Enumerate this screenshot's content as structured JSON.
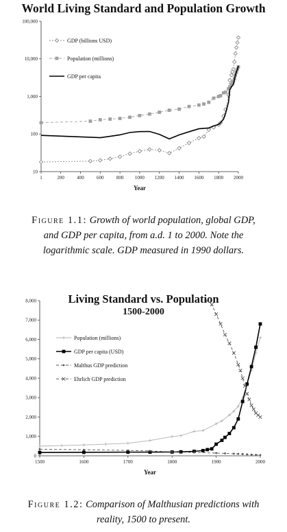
{
  "chart_data": [
    {
      "type": "line",
      "title": "World Living Standard and Population Growth",
      "xlabel": "Year",
      "ylabel": "",
      "yscale": "log",
      "xlim": [
        1,
        2000
      ],
      "ylim": [
        10,
        100000
      ],
      "x_ticks": [
        "1",
        "200",
        "400",
        "600",
        "800",
        "1000",
        "1200",
        "1400",
        "1600",
        "1800",
        "2000"
      ],
      "y_ticks": [
        "10",
        "100",
        "1,000",
        "10,000",
        "100,000"
      ],
      "legend": "top-left",
      "series": [
        {
          "name": "GDP (billions USD)",
          "color": "#8a8a8a",
          "marker": "diamond",
          "style": "dotted",
          "x": [
            1,
            500,
            600,
            700,
            800,
            900,
            1000,
            1100,
            1200,
            1300,
            1400,
            1500,
            1600,
            1650,
            1700,
            1750,
            1800,
            1820,
            1850,
            1870,
            1900,
            1913,
            1930,
            1940,
            1950,
            1960,
            1970,
            1980,
            1990,
            2000
          ],
          "y": [
            18,
            19,
            20,
            22,
            25,
            30,
            35,
            39,
            37,
            31,
            42,
            58,
            78,
            85,
            130,
            150,
            175,
            200,
            300,
            450,
            1100,
            2700,
            3700,
            4500,
            5300,
            8300,
            13800,
            20000,
            27000,
            37000
          ]
        },
        {
          "name": "Population (millions)",
          "color": "#a0a0a0",
          "marker": "square",
          "style": "dashed",
          "x": [
            1,
            500,
            600,
            700,
            800,
            900,
            1000,
            1100,
            1200,
            1300,
            1400,
            1500,
            1600,
            1650,
            1700,
            1750,
            1800,
            1820,
            1850,
            1870,
            1900,
            1913,
            1930,
            1940,
            1950,
            1960,
            1970,
            1980,
            1990,
            2000
          ],
          "y": [
            200,
            220,
            240,
            250,
            260,
            280,
            310,
            340,
            380,
            430,
            460,
            540,
            590,
            630,
            700,
            900,
            1000,
            1050,
            1250,
            1300,
            1600,
            1800,
            2100,
            2300,
            2550,
            3000,
            3700,
            4400,
            5300,
            6100
          ]
        },
        {
          "name": "GDP per capita",
          "color": "#000000",
          "marker": "none",
          "style": "solid",
          "x": [
            1,
            500,
            600,
            700,
            800,
            900,
            1000,
            1100,
            1200,
            1300,
            1400,
            1500,
            1600,
            1700,
            1750,
            1800,
            1820,
            1850,
            1870,
            1900,
            1913,
            1930,
            1940,
            1950,
            1960,
            1970,
            1980,
            1990,
            2000
          ],
          "y": [
            92,
            82,
            80,
            87,
            95,
            110,
            116,
            117,
            98,
            74,
            95,
            115,
            138,
            145,
            165,
            180,
            200,
            250,
            350,
            700,
            1500,
            1800,
            1950,
            2100,
            2800,
            3700,
            4500,
            5200,
            6500
          ]
        }
      ]
    },
    {
      "type": "line",
      "title": "Living Standard vs. Population",
      "subtitle": "1500-2000",
      "xlabel": "Year",
      "ylabel": "",
      "xlim": [
        1500,
        2000
      ],
      "ylim": [
        0,
        8000
      ],
      "x_ticks": [
        "1500",
        "1600",
        "1700",
        "1800",
        "1900",
        "2000"
      ],
      "y_ticks": [
        "0",
        "1,000",
        "2,000",
        "3,000",
        "4,000",
        "5,000",
        "6,000",
        "7,000",
        "8,000"
      ],
      "legend": "top-left",
      "series": [
        {
          "name": "Population (millions)",
          "color": "#b0b0b0",
          "marker": "plus",
          "style": "solid",
          "x": [
            1500,
            1550,
            1600,
            1650,
            1700,
            1750,
            1800,
            1820,
            1850,
            1870,
            1900,
            1913,
            1930,
            1940,
            1950,
            1960,
            1970,
            1980,
            1990,
            2000
          ],
          "y": [
            500,
            530,
            560,
            600,
            650,
            790,
            990,
            1040,
            1260,
            1300,
            1650,
            1800,
            2100,
            2300,
            2550,
            3000,
            3700,
            4400,
            5300,
            6100
          ]
        },
        {
          "name": "GDP per capita (USD)",
          "color": "#000000",
          "marker": "square",
          "style": "solid",
          "x": [
            1500,
            1600,
            1700,
            1750,
            1800,
            1820,
            1850,
            1870,
            1880,
            1890,
            1900,
            1913,
            1920,
            1930,
            1940,
            1950,
            1960,
            1970,
            1980,
            1990,
            2000
          ],
          "y": [
            170,
            180,
            190,
            190,
            195,
            205,
            230,
            270,
            320,
            360,
            600,
            800,
            950,
            1150,
            1450,
            1900,
            2800,
            3700,
            4600,
            5600,
            6800
          ]
        },
        {
          "name": "Malthus GDP prediction",
          "color": "#555555",
          "marker": "dot",
          "style": "dashed",
          "x": [
            1500,
            1600,
            1700,
            1750,
            1800,
            1850,
            1900,
            1920,
            1940,
            1950,
            1960,
            1970,
            1980,
            1990,
            2000
          ],
          "y": [
            340,
            310,
            280,
            250,
            200,
            175,
            140,
            125,
            110,
            100,
            90,
            75,
            60,
            50,
            40
          ]
        },
        {
          "name": "Ehrlich GDP prediction",
          "color": "#555555",
          "marker": "x",
          "style": "dashed",
          "x": [
            1880,
            1890,
            1900,
            1910,
            1920,
            1930,
            1940,
            1950,
            1955,
            1960,
            1965,
            1970,
            1975,
            1980,
            1985,
            1990,
            1995,
            2000
          ],
          "y": [
            8000,
            7800,
            7300,
            6800,
            6250,
            5800,
            5300,
            4700,
            4400,
            4000,
            3600,
            3200,
            2900,
            2600,
            2400,
            2200,
            2100,
            2000
          ]
        }
      ]
    }
  ],
  "figure1_caption": {
    "label": "Figure 1.1:",
    "text_line1": "Growth of world population, global GDP,",
    "text_line2": "and GDP per capita, from a.d. 1 to 2000. Note the",
    "text_line3": "logarithmic scale. GDP measured in 1990 dollars."
  },
  "figure2_caption": {
    "label": "Figure 1.2:",
    "text_line1": "Comparison of Malthusian predictions with",
    "text_line2": "reality, 1500 to present."
  }
}
